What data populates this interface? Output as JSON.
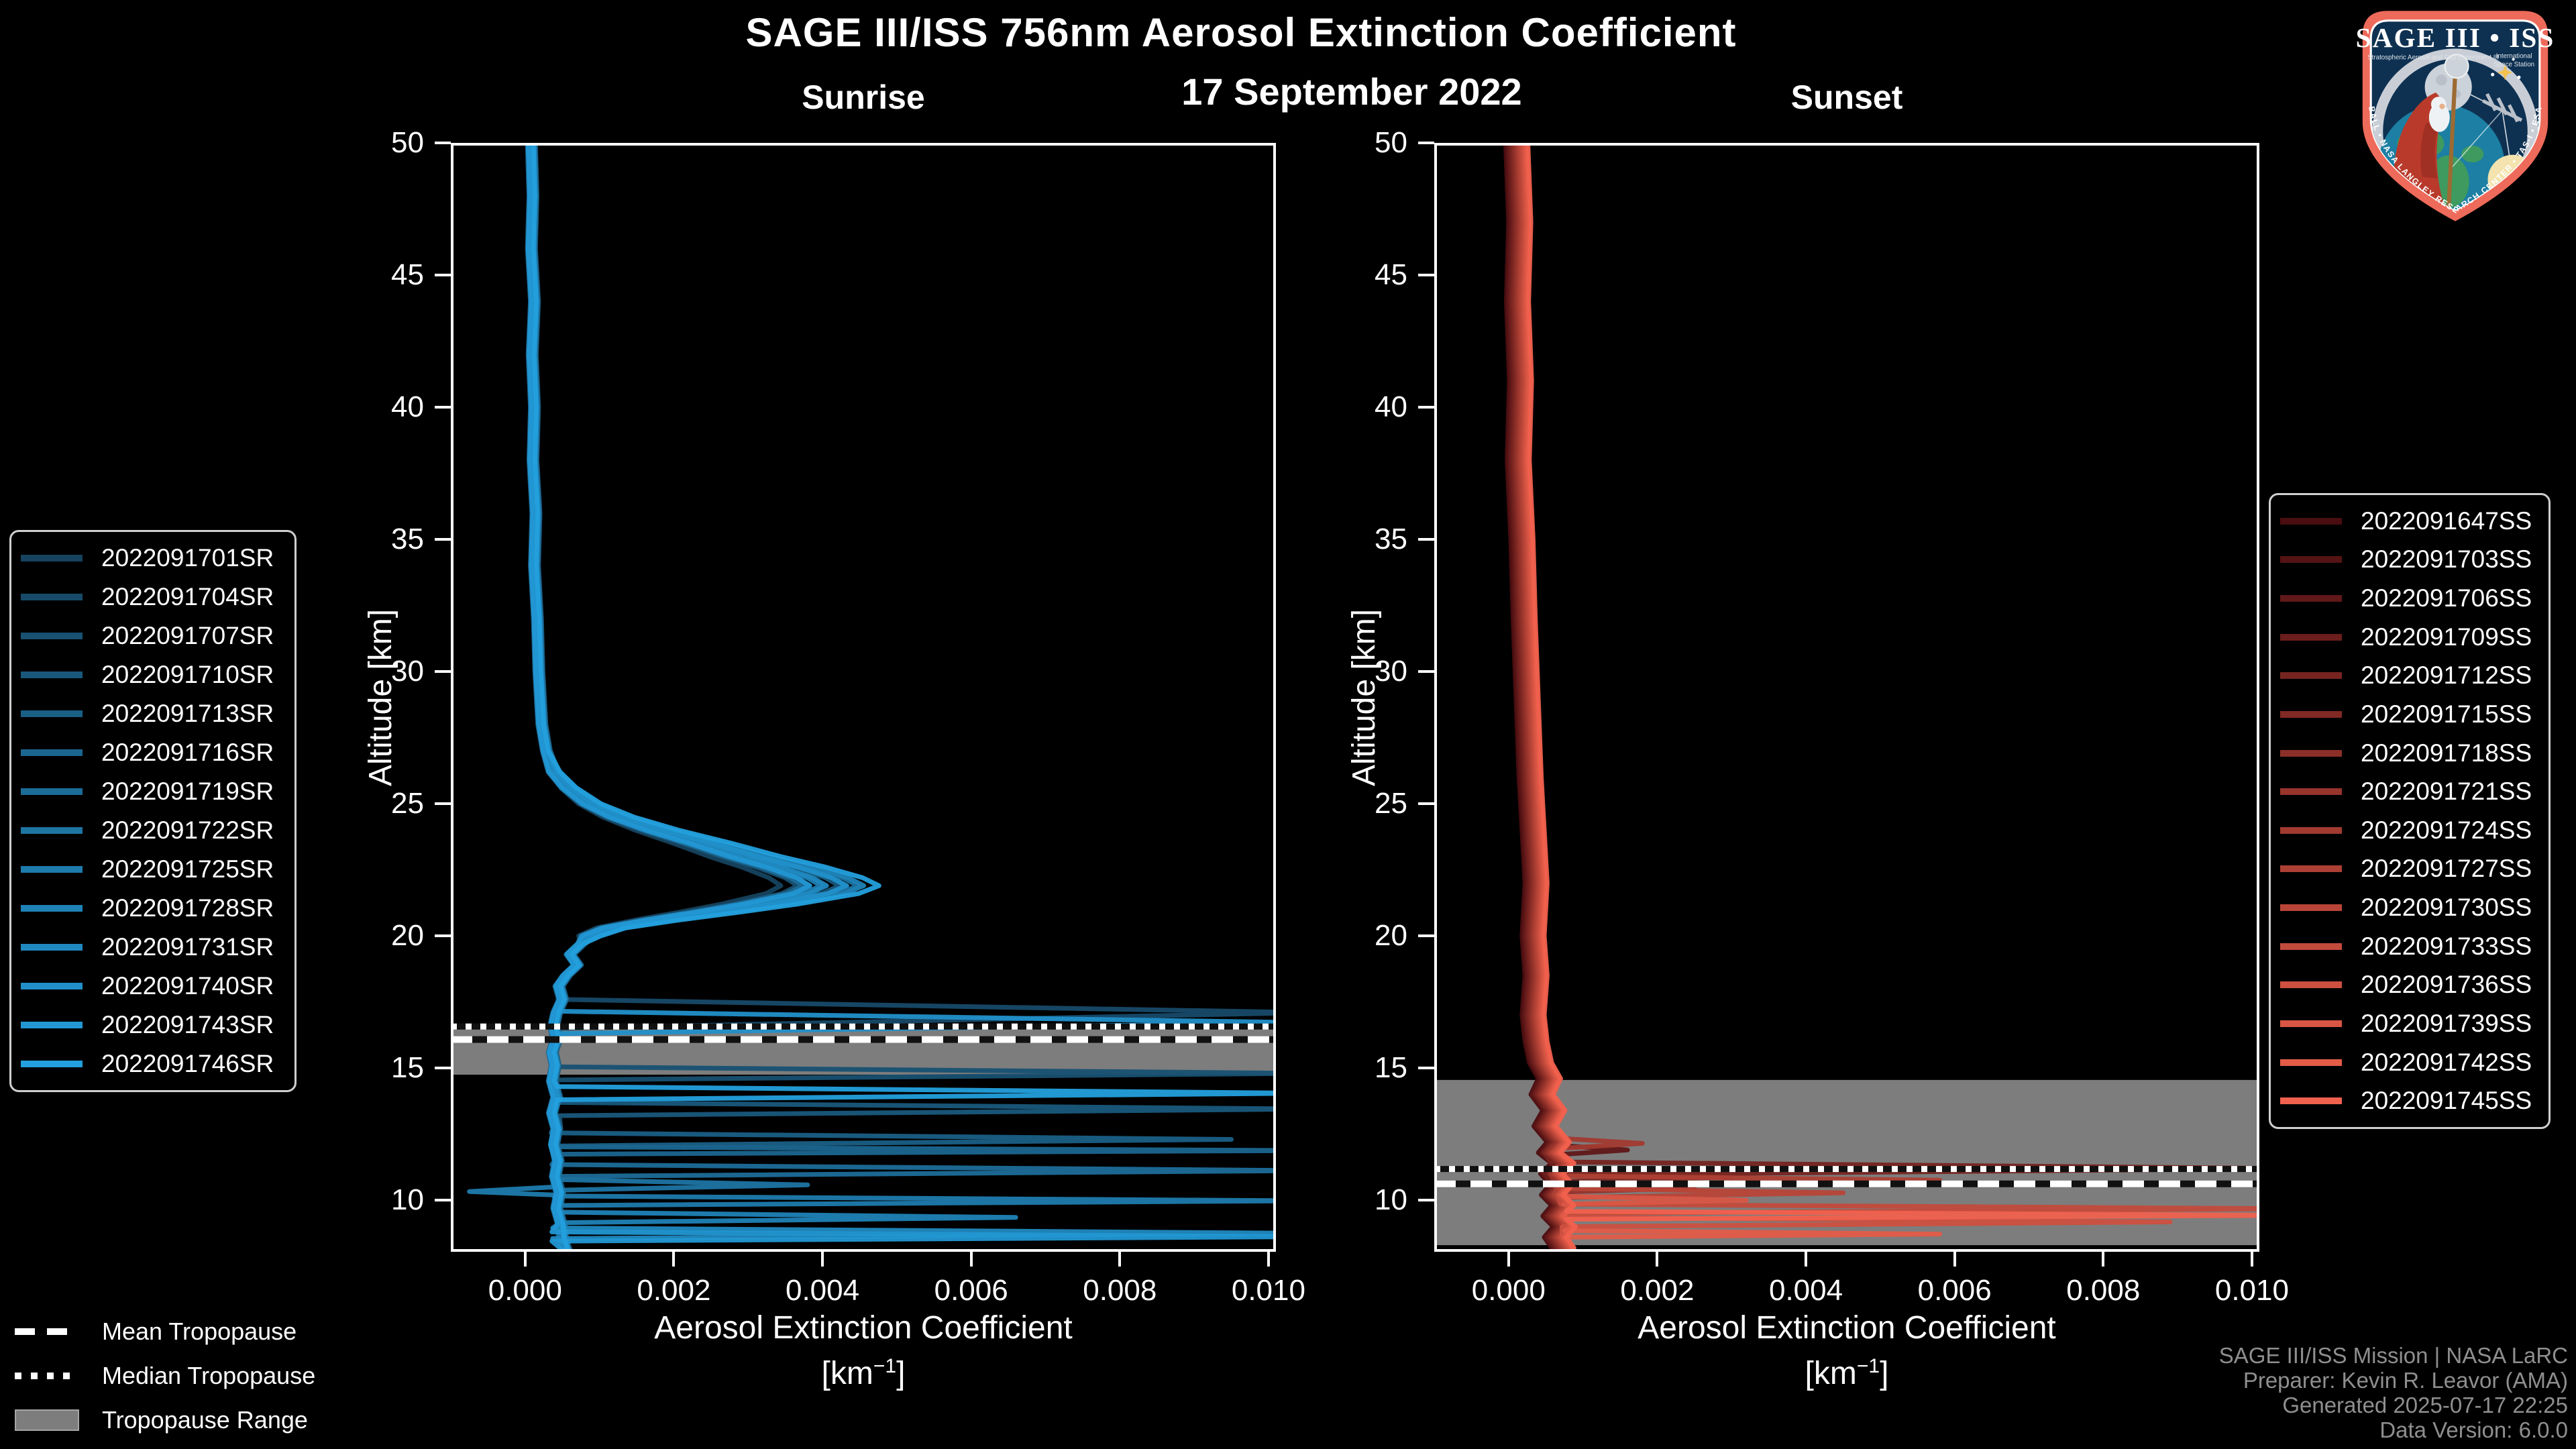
{
  "figure": {
    "title": "SAGE III/ISS 756nm Aerosol Extinction Coefficient",
    "subtitle": "17 September 2022",
    "background": "#000000",
    "frame_color": "#ffffff",
    "text_color": "#ffffff"
  },
  "chart_data": [
    {
      "id": "sunrise",
      "type": "line",
      "panel_title": "Sunrise",
      "xlabel": "Aerosol Extinction Coefficient",
      "units_prefix": "[km",
      "units_sup": "−1",
      "units_suffix": "]",
      "ylabel": "Altitude [km]",
      "xlim": [
        -0.001,
        0.0101
      ],
      "ylim": [
        8.05,
        50
      ],
      "grid": false,
      "xtick_labels": [
        "0.000",
        "0.002",
        "0.004",
        "0.006",
        "0.008",
        "0.010"
      ],
      "xtick_values": [
        0.0,
        0.002,
        0.004,
        0.006,
        0.008,
        0.01
      ],
      "ytick_values": [
        50,
        45,
        40,
        35,
        30,
        25,
        20,
        15,
        10
      ],
      "tropopause": {
        "mean_km": 16.08,
        "median_km": 16.57,
        "range_km": [
          14.75,
          16.68
        ],
        "band_color": "#7d7d7d"
      },
      "bulge_range_km": [
        19.8,
        26.6
      ],
      "spike_base": 0.0004,
      "base_profile": [
        [
          50,
          8e-05
        ],
        [
          48,
          0.0001
        ],
        [
          46,
          8e-05
        ],
        [
          44,
          0.00012
        ],
        [
          42,
          9e-05
        ],
        [
          40,
          0.00012
        ],
        [
          38,
          0.0001
        ],
        [
          36,
          0.00014
        ],
        [
          34,
          0.00012
        ],
        [
          32,
          0.00016
        ],
        [
          30,
          0.00018
        ],
        [
          28,
          0.00022
        ],
        [
          27,
          0.00028
        ],
        [
          26.2,
          0.0004
        ],
        [
          25.6,
          0.0006
        ],
        [
          25.0,
          0.0009
        ],
        [
          24.5,
          0.0013
        ],
        [
          24.0,
          0.00185
        ],
        [
          23.5,
          0.0025
        ],
        [
          23.0,
          0.0031
        ],
        [
          22.6,
          0.00365
        ],
        [
          22.2,
          0.0041
        ],
        [
          21.9,
          0.0043
        ],
        [
          21.6,
          0.00405
        ],
        [
          21.2,
          0.0033
        ],
        [
          20.9,
          0.0026
        ],
        [
          20.6,
          0.00185
        ],
        [
          20.3,
          0.0012
        ],
        [
          20.0,
          0.0009
        ],
        [
          19.7,
          0.00075
        ],
        [
          19.3,
          0.0006
        ],
        [
          18.9,
          0.0007
        ],
        [
          18.5,
          0.00055
        ],
        [
          18.1,
          0.00045
        ],
        [
          17.6,
          0.0005
        ],
        [
          17.1,
          0.00042
        ],
        [
          16.6,
          0.00038
        ],
        [
          16.1,
          0.00042
        ],
        [
          15.6,
          0.00036
        ],
        [
          15.1,
          0.0004
        ],
        [
          14.5,
          0.00036
        ],
        [
          13.9,
          0.00042
        ],
        [
          13.3,
          0.00036
        ],
        [
          12.7,
          0.00042
        ],
        [
          12.1,
          0.00038
        ],
        [
          11.5,
          0.00044
        ],
        [
          10.9,
          0.0004
        ],
        [
          10.3,
          0.00046
        ],
        [
          9.7,
          0.00042
        ],
        [
          9.1,
          0.00048
        ],
        [
          8.5,
          0.0005
        ],
        [
          8.1,
          0.00055
        ]
      ],
      "series": [
        {
          "name": "2022091701SR",
          "color": "#16435f",
          "bulge": 0.8,
          "dx": 0.0,
          "spikes": []
        },
        {
          "name": "2022091704SR",
          "color": "#174a69",
          "bulge": 0.92,
          "dx": 4e-05,
          "spikes": [
            [
              17.6,
              17.1,
              16.5,
              0.0105
            ]
          ]
        },
        {
          "name": "2022091707SR",
          "color": "#185172",
          "bulge": 0.86,
          "dx": -3e-05,
          "spikes": [
            [
              15.05,
              14.8,
              14.55,
              0.0105
            ]
          ]
        },
        {
          "name": "2022091710SR",
          "color": "#19587c",
          "bulge": 0.97,
          "dx": 6e-05,
          "spikes": [
            [
              13.7,
              13.45,
              13.2,
              0.0105
            ]
          ]
        },
        {
          "name": "2022091713SR",
          "color": "#1a5f86",
          "bulge": 0.9,
          "dx": -5e-05,
          "spikes": [
            [
              12.55,
              12.3,
              12.05,
              0.0095
            ]
          ]
        },
        {
          "name": "2022091716SR",
          "color": "#1b6690",
          "bulge": 1.0,
          "dx": 3e-05,
          "spikes": [
            [
              12.02,
              11.88,
              11.74,
              0.0105
            ]
          ]
        },
        {
          "name": "2022091719SR",
          "color": "#1c6d99",
          "bulge": 0.88,
          "dx": -4e-05,
          "spikes": [
            [
              11.35,
              11.12,
              10.9,
              0.0105
            ]
          ]
        },
        {
          "name": "2022091722SR",
          "color": "#1d74a3",
          "bulge": 1.03,
          "dx": 5e-05,
          "spikes": [
            [
              10.78,
              10.58,
              10.38,
              0.0038
            ]
          ]
        },
        {
          "name": "2022091725SR",
          "color": "#1e7bad",
          "bulge": 0.93,
          "dx": -2e-05,
          "spikes": [
            [
              10.5,
              10.33,
              10.2,
              -0.00075
            ],
            [
              10.16,
              9.98,
              9.8,
              0.0105
            ]
          ]
        },
        {
          "name": "2022091728SR",
          "color": "#1f82b6",
          "bulge": 1.05,
          "dx": 4e-05,
          "spikes": [
            [
              9.55,
              9.35,
              9.15,
              0.0066
            ]
          ]
        },
        {
          "name": "2022091731SR",
          "color": "#2089c0",
          "bulge": 0.95,
          "dx": -3e-05,
          "spikes": [
            [
              8.95,
              8.75,
              8.55,
              0.0105
            ]
          ]
        },
        {
          "name": "2022091740SR",
          "color": "#2190ca",
          "bulge": 1.0,
          "dx": 2e-05,
          "spikes": [
            [
              17.15,
              16.72,
              16.3,
              0.0105
            ]
          ]
        },
        {
          "name": "2022091743SR",
          "color": "#2297d3",
          "bulge": 0.9,
          "dx": -4e-05,
          "spikes": [
            [
              8.8,
              8.62,
              8.45,
              0.0105
            ]
          ]
        },
        {
          "name": "2022091746SR",
          "color": "#23a0dd",
          "bulge": 1.1,
          "dx": 3e-05,
          "spikes": [
            [
              14.3,
              14.05,
              13.8,
              0.0105
            ]
          ]
        }
      ]
    },
    {
      "id": "sunset",
      "type": "line",
      "panel_title": "Sunset",
      "xlabel": "Aerosol Extinction Coefficient",
      "units_prefix": "[km",
      "units_sup": "−1",
      "units_suffix": "]",
      "ylabel": "Altitude [km]",
      "xlim": [
        -0.001,
        0.0101
      ],
      "ylim": [
        8.05,
        50
      ],
      "grid": false,
      "xtick_labels": [
        "0.000",
        "0.002",
        "0.004",
        "0.006",
        "0.008",
        "0.010"
      ],
      "xtick_values": [
        0.0,
        0.002,
        0.004,
        0.006,
        0.008,
        0.01
      ],
      "ytick_values": [
        50,
        45,
        40,
        35,
        30,
        25,
        20,
        15,
        10
      ],
      "tropopause": {
        "mean_km": 10.62,
        "median_km": 11.18,
        "range_km": [
          8.3,
          14.55
        ],
        "band_color": "#7d7d7d"
      },
      "bulge_range_km": null,
      "spike_base": 0.0006,
      "base_profile": [
        [
          50,
          8e-05
        ],
        [
          47,
          0.00012
        ],
        [
          44,
          9e-05
        ],
        [
          41,
          0.00013
        ],
        [
          38,
          0.0001
        ],
        [
          35,
          0.00015
        ],
        [
          32,
          0.00018
        ],
        [
          29,
          0.00022
        ],
        [
          26,
          0.00026
        ],
        [
          24,
          0.0003
        ],
        [
          22,
          0.00034
        ],
        [
          20,
          0.0003
        ],
        [
          18.5,
          0.00034
        ],
        [
          17,
          0.0003
        ],
        [
          16,
          0.00034
        ],
        [
          15.2,
          0.0004
        ],
        [
          14.6,
          0.00052
        ],
        [
          14.0,
          0.00042
        ],
        [
          13.4,
          0.00058
        ],
        [
          12.8,
          0.00046
        ],
        [
          12.2,
          0.00064
        ],
        [
          11.8,
          0.00052
        ],
        [
          11.4,
          0.0007
        ],
        [
          11.0,
          0.00055
        ],
        [
          10.6,
          0.00068
        ],
        [
          10.2,
          0.00056
        ],
        [
          9.8,
          0.0007
        ],
        [
          9.4,
          0.00058
        ],
        [
          9.0,
          0.00072
        ],
        [
          8.6,
          0.0006
        ],
        [
          8.2,
          0.0007
        ]
      ],
      "series": [
        {
          "name": "2022091647SS",
          "color": "#4a0d10",
          "bulge": 1,
          "dx": -0.00012,
          "spikes": []
        },
        {
          "name": "2022091703SS",
          "color": "#551314",
          "bulge": 1,
          "dx": -0.0001,
          "spikes": []
        },
        {
          "name": "2022091706SS",
          "color": "#601818",
          "bulge": 1,
          "dx": -8e-05,
          "spikes": [
            [
              12.1,
              11.9,
              11.7,
              0.0016
            ]
          ]
        },
        {
          "name": "2022091709SS",
          "color": "#6b1e1c",
          "bulge": 1,
          "dx": -6e-05,
          "spikes": []
        },
        {
          "name": "2022091712SS",
          "color": "#762420",
          "bulge": 1,
          "dx": -4e-05,
          "spikes": [
            [
              11.45,
              11.2,
              10.95,
              0.0105
            ]
          ]
        },
        {
          "name": "2022091715SS",
          "color": "#812924",
          "bulge": 1,
          "dx": -2e-05,
          "spikes": [
            [
              11.05,
              10.88,
              10.7,
              0.003
            ]
          ]
        },
        {
          "name": "2022091718SS",
          "color": "#8c2f28",
          "bulge": 1,
          "dx": 0.0,
          "spikes": []
        },
        {
          "name": "2022091721SS",
          "color": "#97342c",
          "bulge": 1,
          "dx": 2e-05,
          "spikes": [
            [
              10.62,
              10.46,
              10.3,
              0.0025
            ]
          ]
        },
        {
          "name": "2022091724SS",
          "color": "#a23a30",
          "bulge": 1,
          "dx": 4e-05,
          "spikes": [
            [
              12.35,
              12.15,
              11.95,
              0.0018
            ]
          ]
        },
        {
          "name": "2022091727SS",
          "color": "#ad4034",
          "bulge": 1,
          "dx": 6e-05,
          "spikes": [
            [
              10.92,
              10.76,
              10.6,
              0.0058
            ]
          ]
        },
        {
          "name": "2022091730SS",
          "color": "#b84538",
          "bulge": 1,
          "dx": 8e-05,
          "spikes": [
            [
              10.45,
              10.28,
              10.1,
              0.0045
            ]
          ]
        },
        {
          "name": "2022091733SS",
          "color": "#c34b3c",
          "bulge": 1,
          "dx": 0.0001,
          "spikes": [
            [
              9.85,
              9.68,
              9.5,
              0.0105
            ]
          ]
        },
        {
          "name": "2022091736SS",
          "color": "#ce5040",
          "bulge": 1,
          "dx": 0.00012,
          "spikes": [
            [
              9.35,
              9.18,
              9.0,
              0.0089
            ]
          ]
        },
        {
          "name": "2022091739SS",
          "color": "#d95644",
          "bulge": 1,
          "dx": 0.00014,
          "spikes": [
            [
              10.15,
              10.0,
              9.85,
              0.0032
            ]
          ]
        },
        {
          "name": "2022091742SS",
          "color": "#e45b48",
          "bulge": 1,
          "dx": 0.00016,
          "spikes": [
            [
              8.85,
              8.72,
              8.6,
              0.0058
            ]
          ]
        },
        {
          "name": "2022091745SS",
          "color": "#f0614e",
          "bulge": 1,
          "dx": 0.00018,
          "spikes": [
            [
              9.58,
              9.43,
              9.28,
              0.0105
            ]
          ]
        }
      ]
    }
  ],
  "tropopause_legend": {
    "items": [
      {
        "label": "Mean Tropopause",
        "style": "dashed-white-line"
      },
      {
        "label": "Median Tropopause",
        "style": "dotted-white-line"
      },
      {
        "label": "Tropopause Range",
        "style": "gray-filled-band",
        "color": "#7d7d7d"
      }
    ]
  },
  "attribution": {
    "lines": [
      "SAGE III/ISS Mission | NASA LaRC",
      "Preparer: Kevin R. Leavor (AMA)",
      "Generated 2025-07-17 22:25",
      "Data Version: 6.0.0"
    ],
    "color": "#8f8f8f"
  },
  "logo": {
    "title": "SAGE III • ISS",
    "subtitle_left": "Stratospheric Aerosol and Gas Experiment III",
    "subtitle_right_1": "International",
    "subtitle_right_2": "Space Station",
    "border_text": "BALL • NASA LANGLEY RESEARCH CENTER • TAS-I • ESA",
    "colors": {
      "border": "#ee6a5a",
      "field": "#0e3152",
      "ring": "#c9ced6",
      "earth_water": "#1c7fa3",
      "earth_land": "#3e9a5f",
      "robe": "#b93a2b",
      "moon": "#ccd2d9",
      "sun": "#f4e3ae",
      "star": "#f2c14e"
    }
  }
}
